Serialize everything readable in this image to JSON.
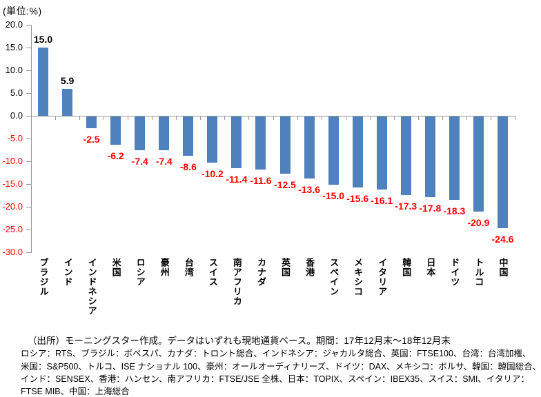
{
  "chart_data": {
    "type": "bar",
    "title": "",
    "unit_label": "(単位:%)",
    "categories": [
      "ブラジル",
      "インド",
      "インドネシア",
      "米国",
      "ロシア",
      "豪州",
      "台湾",
      "スイス",
      "南アフリカ",
      "カナダ",
      "英国",
      "香港",
      "スペイン",
      "メキシコ",
      "イタリア",
      "韓国",
      "日本",
      "ドイツ",
      "トルコ",
      "中国"
    ],
    "values": [
      15.0,
      5.9,
      -2.5,
      -6.2,
      -7.4,
      -7.4,
      -8.6,
      -10.2,
      -11.4,
      -11.6,
      -12.5,
      -13.6,
      -15.0,
      -15.6,
      -16.1,
      -17.3,
      -17.8,
      -18.3,
      -20.9,
      -24.6
    ],
    "value_labels": [
      "15.0",
      "5.9",
      "-2.5",
      "-6.2",
      "-7.4",
      "-7.4",
      "-8.6",
      "-10.2",
      "-11.4",
      "-11.6",
      "-12.5",
      "-13.6",
      "-15.0",
      "-15.6",
      "-16.1",
      "-17.3",
      "-17.8",
      "-18.3",
      "-20.9",
      "-24.6"
    ],
    "xlabel": "",
    "ylabel": "",
    "ylim": [
      -30,
      20
    ],
    "ytick_step": 5,
    "ytick_labels": [
      "20.0",
      "15.0",
      "10.0",
      "5.0",
      "0.0",
      "-5.0",
      "-10.0",
      "-15.0",
      "-20.0",
      "-25.0",
      "-30.0"
    ],
    "grid": false,
    "legend": "none",
    "bar_color": "#4F81BD",
    "positive_label_color": "#000000",
    "negative_label_color": "#FF0000",
    "axis_color": "#969696"
  },
  "footer": {
    "source": "（出所）モーニングスター作成。データはいずれも現地通貨ベース。期間：17年12月末～18年12月末",
    "notes": [
      "ロシア：RTS、ブラジル：ボベスパ、カナダ：トロント総合、インドネシア：ジャカルタ総合、英国：FTSE100、台湾：台湾加権、",
      "米国：S&P500、トルコ、ISE ナショナル 100、豪州：オールオーディナリーズ、ドイツ：DAX、メキシコ：ボルサ、韓国：韓国総合、",
      "インド：SENSEX、香港：ハンセン、南アフリカ：FTSE/JSE 全株、日本：TOPIX、スペイン：IBEX35、スイス：SMI、イタリア：",
      "FTSE MIB、中国：上海総合"
    ]
  }
}
